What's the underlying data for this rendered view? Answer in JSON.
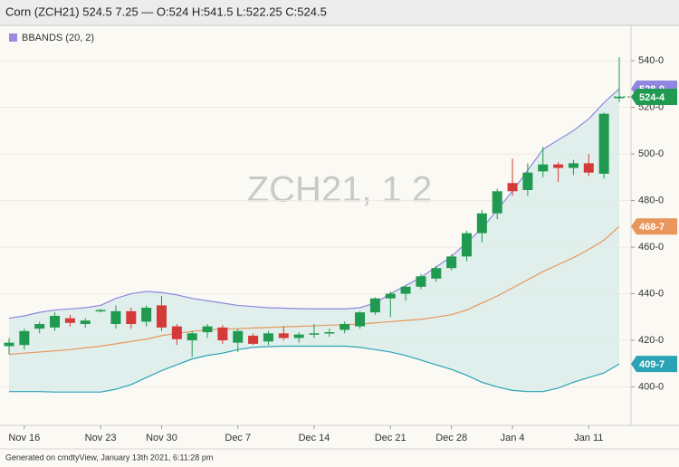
{
  "chart_data": {
    "type": "candlestick",
    "title": "Corn (ZCH21) 524.5 7.25 — O:524 H:541.5 L:522.25 C:524.5",
    "watermark": "ZCH21, 1 2",
    "legend": {
      "label": "BBANDS (20, 2)",
      "color": "#9b8ce0",
      "position": "top-left"
    },
    "footer": "Generated on cmdtyView, January 13th 2021, 6:11:28 pm",
    "categories": [
      null,
      "Nov 16",
      null,
      null,
      null,
      null,
      "Nov 23",
      null,
      null,
      null,
      "Nov 30",
      null,
      null,
      null,
      null,
      "Dec 7",
      null,
      null,
      null,
      null,
      "Dec 14",
      null,
      null,
      null,
      null,
      "Dec 21",
      null,
      null,
      null,
      "Dec 28",
      null,
      null,
      null,
      "Jan 4",
      null,
      null,
      null,
      null,
      "Jan 11",
      null,
      null
    ],
    "up_color": "#1f9a50",
    "down_color": "#d43a3a",
    "open": [
      417.5,
      418,
      425,
      425.5,
      429.5,
      427,
      432.5,
      427,
      432.5,
      428,
      435,
      426,
      420,
      423.5,
      425.5,
      419,
      422,
      419.5,
      423,
      421,
      422.5,
      423,
      424.5,
      426,
      432,
      438,
      440,
      443,
      446.5,
      451,
      456,
      466,
      474.5,
      487.5,
      484.5,
      492.5,
      495.5,
      494,
      496,
      491.5,
      524
    ],
    "high": [
      421,
      425,
      428,
      432,
      431,
      429.5,
      433.5,
      435,
      434,
      435,
      439,
      427,
      424,
      427,
      426.5,
      425,
      423,
      424,
      426,
      423.5,
      427,
      425,
      428,
      432.5,
      438.5,
      441,
      443.5,
      448.5,
      452,
      457,
      467,
      476,
      485,
      498,
      496,
      503,
      496.5,
      497.5,
      500,
      517.75,
      541.5
    ],
    "low": [
      414,
      416,
      423,
      424,
      426,
      425.5,
      432,
      425,
      425,
      426,
      424,
      418,
      413,
      421,
      418.5,
      415,
      418,
      418,
      420,
      419,
      421,
      421.5,
      423,
      425,
      431,
      430,
      437,
      442,
      445,
      450,
      454,
      462,
      472,
      482,
      482,
      490,
      488,
      491,
      490.5,
      489.5,
      522.25
    ],
    "close": [
      419,
      424,
      427,
      430.5,
      427.5,
      428.5,
      433,
      432.5,
      427,
      434,
      425.5,
      420.5,
      423,
      426,
      420,
      424,
      418.5,
      423,
      421,
      422.5,
      423,
      423.5,
      427,
      432,
      438,
      440,
      443,
      447.5,
      451,
      456,
      466,
      474.5,
      484,
      484,
      492,
      495.5,
      494,
      496,
      492,
      517.25,
      524.5
    ],
    "close_labels": [
      null,
      null,
      null,
      null,
      null,
      null,
      null,
      null,
      null,
      null,
      null,
      null,
      null,
      null,
      null,
      null,
      null,
      null,
      null,
      null,
      null,
      null,
      null,
      null,
      null,
      null,
      null,
      null,
      null,
      null,
      null,
      null,
      null,
      null,
      null,
      null,
      null,
      null,
      null,
      null,
      "524-4"
    ],
    "series": [
      {
        "color": "#2aa3b5",
        "values": [
          398,
          398,
          398,
          397.8,
          397.8,
          397.8,
          397.8,
          399,
          401,
          404,
          407,
          409.5,
          412,
          413.5,
          414.5,
          416,
          417,
          417.3,
          417.5,
          417.5,
          417.5,
          417.5,
          417.5,
          417,
          416,
          415,
          413.5,
          411.5,
          409.5,
          407.5,
          405,
          402,
          400,
          398.5,
          398,
          398,
          399.5,
          402,
          404,
          406,
          409.875
        ],
        "value_labels": [
          null,
          null,
          null,
          null,
          null,
          null,
          null,
          null,
          null,
          null,
          null,
          null,
          null,
          null,
          null,
          null,
          null,
          null,
          null,
          null,
          null,
          null,
          null,
          null,
          null,
          null,
          null,
          null,
          null,
          null,
          null,
          null,
          null,
          null,
          null,
          null,
          null,
          null,
          null,
          null,
          "409-7"
        ]
      },
      {
        "color": "#e8965c",
        "values": [
          414,
          414.5,
          415,
          415.5,
          416,
          416.8,
          417.5,
          418.5,
          419.5,
          420.5,
          422,
          423,
          423.8,
          424.5,
          424.8,
          425,
          425.3,
          425.5,
          425.8,
          426,
          426.2,
          426.5,
          426.7,
          427,
          427.5,
          428,
          428.5,
          429,
          430,
          431,
          433,
          436,
          439,
          442.5,
          446,
          449.5,
          452.5,
          455.5,
          459,
          463,
          468.875
        ],
        "value_labels": [
          null,
          null,
          null,
          null,
          null,
          null,
          null,
          null,
          null,
          null,
          null,
          null,
          null,
          null,
          null,
          null,
          null,
          null,
          null,
          null,
          null,
          null,
          null,
          null,
          null,
          null,
          null,
          null,
          null,
          null,
          null,
          null,
          null,
          null,
          null,
          null,
          null,
          null,
          null,
          null,
          "468-7"
        ]
      },
      {
        "color": "#8f87e0",
        "values": [
          429.5,
          430.5,
          432,
          433,
          433.5,
          434,
          435,
          438,
          440,
          441,
          440.5,
          439.5,
          438,
          437,
          436,
          435,
          434.5,
          434,
          433.8,
          433.6,
          433.5,
          433.5,
          433.5,
          434,
          436,
          440,
          443.5,
          447,
          451.5,
          456,
          462,
          468,
          476,
          484,
          493,
          502,
          506,
          510,
          515,
          522,
          528
        ],
        "value_labels": [
          null,
          null,
          null,
          null,
          null,
          null,
          null,
          null,
          null,
          null,
          null,
          null,
          null,
          null,
          null,
          null,
          null,
          null,
          null,
          null,
          null,
          null,
          null,
          null,
          null,
          null,
          null,
          null,
          null,
          null,
          null,
          null,
          null,
          null,
          null,
          null,
          null,
          null,
          null,
          null,
          "528-0"
        ]
      }
    ],
    "band_fill": "#d9ece8",
    "ylim": [
      383.5,
      555.2
    ],
    "yticks": [
      {
        "value": 400,
        "label": "400-0"
      },
      {
        "value": 420,
        "label": "420-0"
      },
      {
        "value": 440,
        "label": "440-0"
      },
      {
        "value": 460,
        "label": "460-0"
      },
      {
        "value": 480,
        "label": "480-0"
      },
      {
        "value": 500,
        "label": "500-0"
      },
      {
        "value": 520,
        "label": "520-0"
      },
      {
        "value": 540,
        "label": "540-0"
      }
    ],
    "grid": true
  }
}
